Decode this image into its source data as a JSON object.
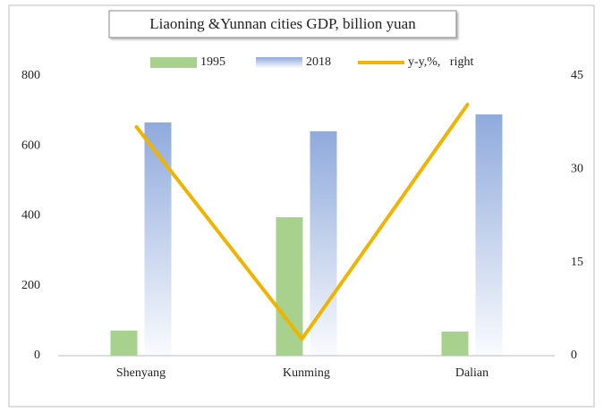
{
  "chart_data": {
    "type": "bar",
    "title": "Liaoning &Yunnan cities GDP, billion yuan",
    "categories": [
      "Shenyang",
      "Kunming",
      "Dalian"
    ],
    "series": [
      {
        "name": "1995",
        "color": "#a9d18e",
        "values": [
          72,
          396,
          69
        ]
      },
      {
        "name": "2018",
        "color": "#8faadc",
        "values": [
          667,
          642,
          690
        ]
      },
      {
        "name": "y-y,%,   right",
        "color": "#f0b400",
        "type": "line",
        "axis": "y2",
        "values": [
          36.8,
          2.7,
          40.4
        ]
      }
    ],
    "ylim": [
      0,
      800
    ],
    "yticks": [
      0,
      200,
      400,
      600,
      800
    ],
    "y2lim": [
      0,
      45
    ],
    "y2ticks": [
      0,
      15,
      30,
      45
    ],
    "grid": false,
    "legend": "top"
  }
}
